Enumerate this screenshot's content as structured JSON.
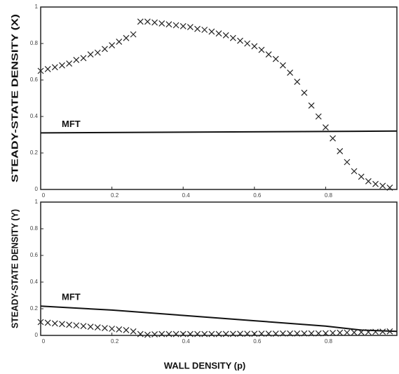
{
  "chart_data": [
    {
      "type": "line",
      "y_label": "STEADY-STATE DENSITY (X)",
      "xlim": [
        0,
        1
      ],
      "ylim": [
        0,
        1
      ],
      "xticks": [
        0,
        0.2,
        0.4,
        0.6,
        0.8
      ],
      "yticks": [
        0,
        0.2,
        0.4,
        0.6,
        0.8,
        1
      ],
      "series": [
        {
          "name": "MFT",
          "style": "line",
          "color": "#111",
          "x": [
            0,
            1
          ],
          "values": [
            0.31,
            0.32
          ]
        },
        {
          "style": "markers",
          "color": "#222",
          "x": [
            0,
            0.02,
            0.04,
            0.06,
            0.08,
            0.1,
            0.12,
            0.14,
            0.16,
            0.18,
            0.2,
            0.22,
            0.24,
            0.26,
            0.28,
            0.3,
            0.32,
            0.34,
            0.36,
            0.38,
            0.4,
            0.42,
            0.44,
            0.46,
            0.48,
            0.5,
            0.52,
            0.54,
            0.56,
            0.58,
            0.6,
            0.62,
            0.64,
            0.66,
            0.68,
            0.7,
            0.72,
            0.74,
            0.76,
            0.78,
            0.8,
            0.82,
            0.84,
            0.86,
            0.88,
            0.9,
            0.92,
            0.94,
            0.96,
            0.98
          ],
          "values": [
            0.65,
            0.66,
            0.67,
            0.68,
            0.69,
            0.71,
            0.72,
            0.74,
            0.75,
            0.77,
            0.79,
            0.81,
            0.83,
            0.85,
            0.92,
            0.92,
            0.915,
            0.91,
            0.905,
            0.9,
            0.895,
            0.89,
            0.88,
            0.875,
            0.865,
            0.855,
            0.845,
            0.83,
            0.815,
            0.8,
            0.785,
            0.765,
            0.74,
            0.715,
            0.68,
            0.64,
            0.59,
            0.53,
            0.46,
            0.4,
            0.34,
            0.28,
            0.21,
            0.15,
            0.1,
            0.07,
            0.045,
            0.03,
            0.02,
            0.01
          ]
        }
      ]
    },
    {
      "type": "line",
      "y_label": "STEADY-STATE DENSITY (Y)",
      "x_label": "WALL DENSITY (p)",
      "xlim": [
        0,
        1
      ],
      "ylim": [
        0,
        1
      ],
      "xticks": [
        0,
        0.2,
        0.4,
        0.6,
        0.8
      ],
      "yticks": [
        0,
        0.2,
        0.4,
        0.6,
        0.8,
        1
      ],
      "series": [
        {
          "name": "MFT",
          "style": "line",
          "color": "#111",
          "x": [
            0,
            0.2,
            0.4,
            0.6,
            0.8,
            0.9,
            1
          ],
          "values": [
            0.22,
            0.19,
            0.15,
            0.11,
            0.07,
            0.04,
            0.03
          ]
        },
        {
          "style": "markers",
          "color": "#222",
          "x": [
            0,
            0.02,
            0.04,
            0.06,
            0.08,
            0.1,
            0.12,
            0.14,
            0.16,
            0.18,
            0.2,
            0.22,
            0.24,
            0.26,
            0.28,
            0.3,
            0.32,
            0.34,
            0.36,
            0.38,
            0.4,
            0.42,
            0.44,
            0.46,
            0.48,
            0.5,
            0.52,
            0.54,
            0.56,
            0.58,
            0.6,
            0.62,
            0.64,
            0.66,
            0.68,
            0.7,
            0.72,
            0.74,
            0.76,
            0.78,
            0.8,
            0.82,
            0.84,
            0.86,
            0.88,
            0.9,
            0.92,
            0.94,
            0.96,
            0.98
          ],
          "values": [
            0.1,
            0.095,
            0.09,
            0.085,
            0.08,
            0.075,
            0.07,
            0.065,
            0.06,
            0.055,
            0.05,
            0.045,
            0.04,
            0.03,
            0.01,
            0.005,
            0.008,
            0.01,
            0.01,
            0.01,
            0.01,
            0.01,
            0.01,
            0.01,
            0.01,
            0.01,
            0.011,
            0.011,
            0.012,
            0.012,
            0.012,
            0.013,
            0.013,
            0.013,
            0.014,
            0.014,
            0.014,
            0.015,
            0.015,
            0.015,
            0.016,
            0.018,
            0.02,
            0.021,
            0.022,
            0.024,
            0.025,
            0.027,
            0.028,
            0.03
          ]
        }
      ]
    }
  ]
}
